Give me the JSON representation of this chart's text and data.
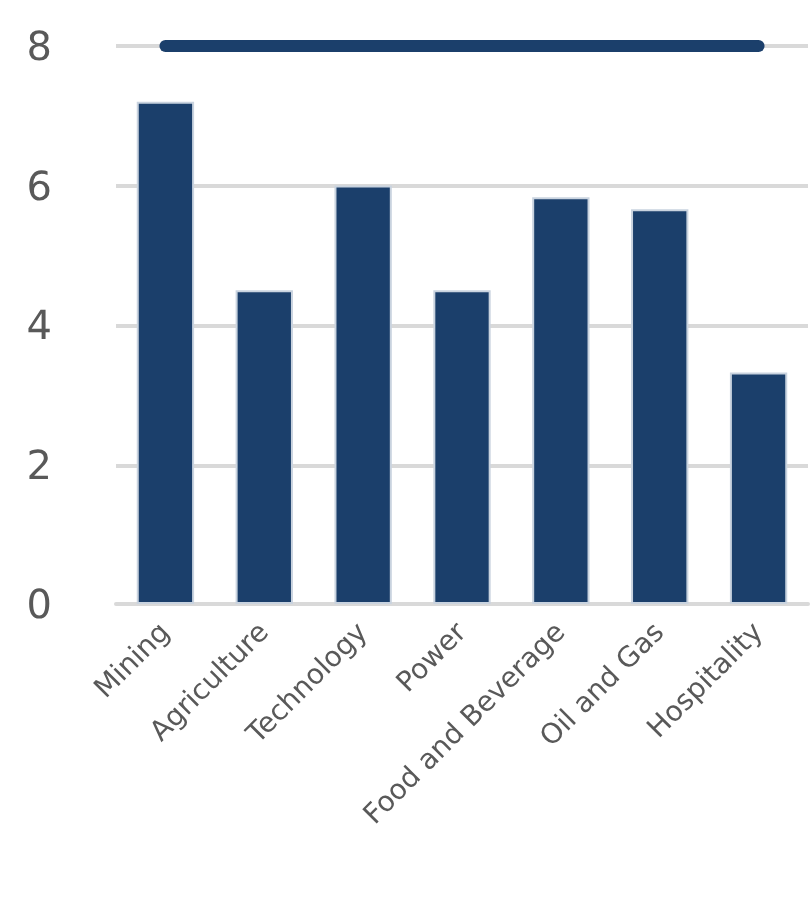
{
  "chart_data": {
    "type": "bar",
    "categories": [
      "Mining",
      "Agriculture",
      "Technology",
      "Power",
      "Food and Beverage",
      "Oil and Gas",
      "Hospitality"
    ],
    "series": [
      {
        "color": "#1b3f6b",
        "values": [
          7.2,
          4.5,
          6.0,
          4.5,
          5.83,
          5.66,
          3.32
        ]
      },
      {
        "type": "line",
        "color": "#1b3f6b",
        "values": [
          8,
          8,
          8,
          8,
          8,
          8,
          8
        ],
        "marker": "none"
      }
    ],
    "ylim": [
      0,
      8
    ],
    "yticks": [
      0,
      2,
      4,
      6,
      8
    ],
    "grid": "y"
  }
}
